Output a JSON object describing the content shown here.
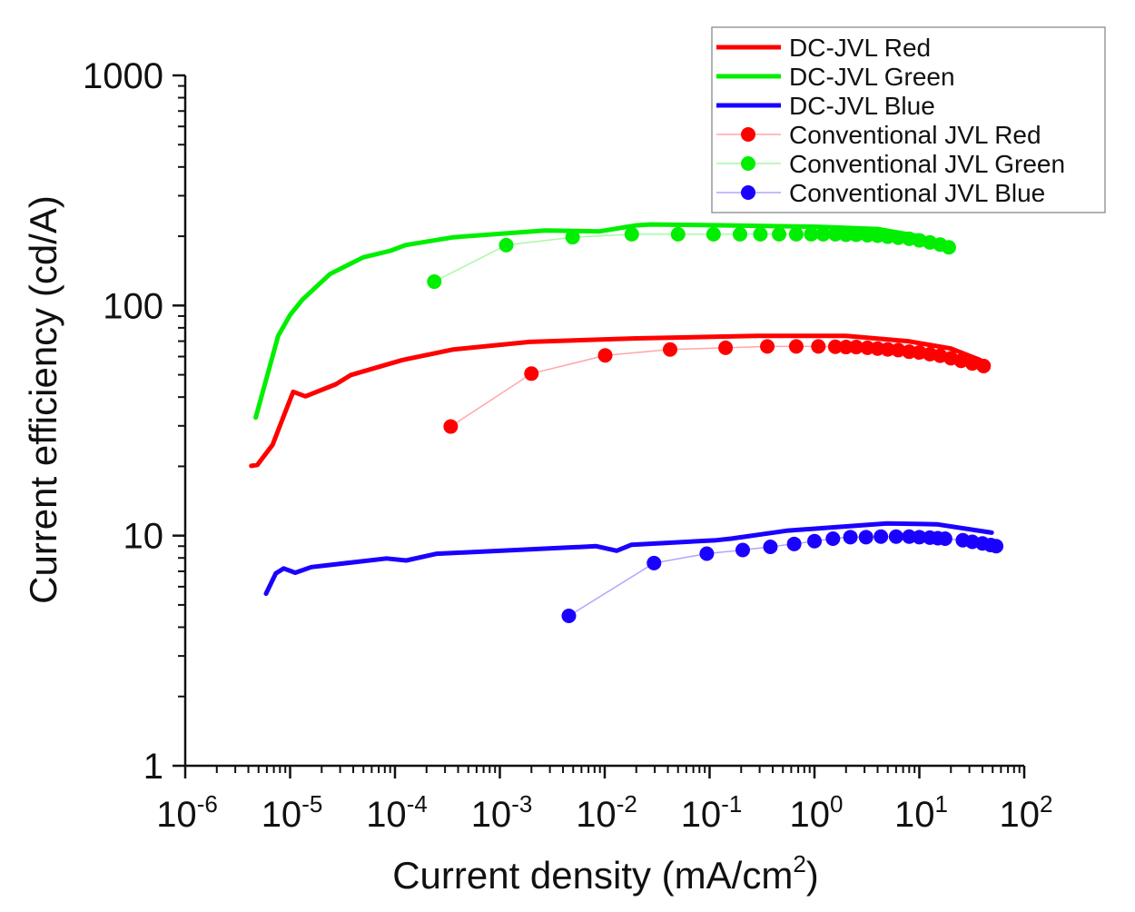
{
  "chart_data": {
    "type": "line",
    "xlabel": "Current density (mA/cm",
    "xlabel_sup": "2",
    "xlabel_end": ")",
    "ylabel": "Current efficiency (cd/A)",
    "x_scale": "log",
    "y_scale": "log",
    "xlim": [
      1e-06,
      100
    ],
    "ylim": [
      1,
      1000
    ],
    "grid": false,
    "legend_position": "top-right",
    "x_ticks": [
      {
        "base": "10",
        "exp": "-6"
      },
      {
        "base": "10",
        "exp": "-5"
      },
      {
        "base": "10",
        "exp": "-4"
      },
      {
        "base": "10",
        "exp": "-3"
      },
      {
        "base": "10",
        "exp": "-2"
      },
      {
        "base": "10",
        "exp": "-1"
      },
      {
        "base": "10",
        "exp": "0"
      },
      {
        "base": "10",
        "exp": "1"
      },
      {
        "base": "10",
        "exp": "2"
      }
    ],
    "y_ticks": [
      "1",
      "10",
      "100",
      "1000"
    ],
    "series": [
      {
        "name": "DC-JVL Red",
        "style": "line",
        "color": "#ff0000",
        "x": [
          4.26e-06,
          4.87e-06,
          6.8e-06,
          8.8e-06,
          1.07e-05,
          1.4e-05,
          2.73e-05,
          3.8e-05,
          0.000118,
          0.00036,
          0.00192,
          0.02,
          0.28,
          2.0,
          7.8,
          20,
          38
        ],
        "y": [
          20.1,
          20.3,
          24.8,
          33.6,
          42.2,
          40.3,
          45.5,
          49.9,
          58,
          64.4,
          69.5,
          72,
          73.8,
          73.8,
          70,
          65,
          58
        ]
      },
      {
        "name": "DC-JVL Green",
        "style": "line",
        "color": "#00ee00",
        "x": [
          4.7e-06,
          7.7e-06,
          1e-05,
          1.31e-05,
          2.4e-05,
          4.98e-05,
          9.1e-05,
          0.000126,
          0.00036,
          0.0027,
          0.0089,
          0.02,
          0.0275,
          0.145,
          1.06,
          4.0,
          10,
          19.7
        ],
        "y": [
          32.6,
          73.9,
          91,
          106,
          137,
          162,
          173,
          183,
          198,
          212,
          210,
          223,
          225,
          223,
          220,
          215,
          200,
          178
        ]
      },
      {
        "name": "DC-JVL Blue",
        "style": "line",
        "color": "#1a00ff",
        "x": [
          5.9e-06,
          7.3e-06,
          8.7e-06,
          1.12e-05,
          1.59e-05,
          8.3e-05,
          0.000128,
          0.00025,
          0.0083,
          0.013,
          0.018,
          0.116,
          0.16,
          0.54,
          4.9,
          14.7,
          49
        ],
        "y": [
          5.6,
          6.85,
          7.2,
          6.9,
          7.3,
          7.96,
          7.8,
          8.34,
          9.0,
          8.6,
          9.13,
          9.55,
          9.7,
          10.5,
          11.3,
          11.2,
          10.3
        ]
      },
      {
        "name": "Conventional JVL Red",
        "style": "line+marker",
        "color": "#ff0000",
        "x": [
          0.00034,
          0.002,
          0.0101,
          0.042,
          0.142,
          0.355,
          0.67,
          1.09,
          1.58,
          2.0,
          2.5,
          3.2,
          4,
          5,
          6.3,
          8,
          10,
          12.6,
          15.8,
          20,
          25,
          32,
          41
        ],
        "y": [
          29.8,
          50.6,
          60.7,
          64.4,
          65.5,
          66.4,
          66.4,
          66.4,
          66.2,
          66,
          66,
          65.5,
          65,
          64.5,
          64,
          63,
          62.5,
          61.5,
          60.5,
          59,
          57.5,
          56,
          54.6
        ]
      },
      {
        "name": "Conventional JVL Green",
        "style": "line+marker",
        "color": "#00ee00",
        "x": [
          0.000237,
          0.00115,
          0.00494,
          0.0181,
          0.05,
          0.109,
          0.195,
          0.305,
          0.46,
          0.67,
          0.93,
          1.21,
          1.58,
          2.0,
          2.5,
          3.2,
          4,
          5,
          6.3,
          8,
          10,
          12.6,
          15.8,
          19.1
        ],
        "y": [
          127,
          183,
          198,
          204,
          204,
          204,
          204,
          204,
          204,
          204,
          204,
          204,
          204,
          203,
          203,
          202,
          201,
          199,
          197,
          195,
          192,
          188,
          184,
          179
        ]
      },
      {
        "name": "Conventional JVL Blue",
        "style": "line+marker",
        "color": "#1a00ff",
        "x": [
          0.00455,
          0.0295,
          0.094,
          0.207,
          0.38,
          0.64,
          1.0,
          1.5,
          2.2,
          3.1,
          4.3,
          6,
          8,
          10,
          12.6,
          15,
          17.6,
          26,
          32,
          40,
          48,
          54
        ],
        "y": [
          4.48,
          7.6,
          8.35,
          8.66,
          8.94,
          9.2,
          9.46,
          9.7,
          9.85,
          9.85,
          9.9,
          9.9,
          9.9,
          9.85,
          9.8,
          9.75,
          9.7,
          9.55,
          9.4,
          9.25,
          9.1,
          9.0
        ]
      }
    ]
  }
}
